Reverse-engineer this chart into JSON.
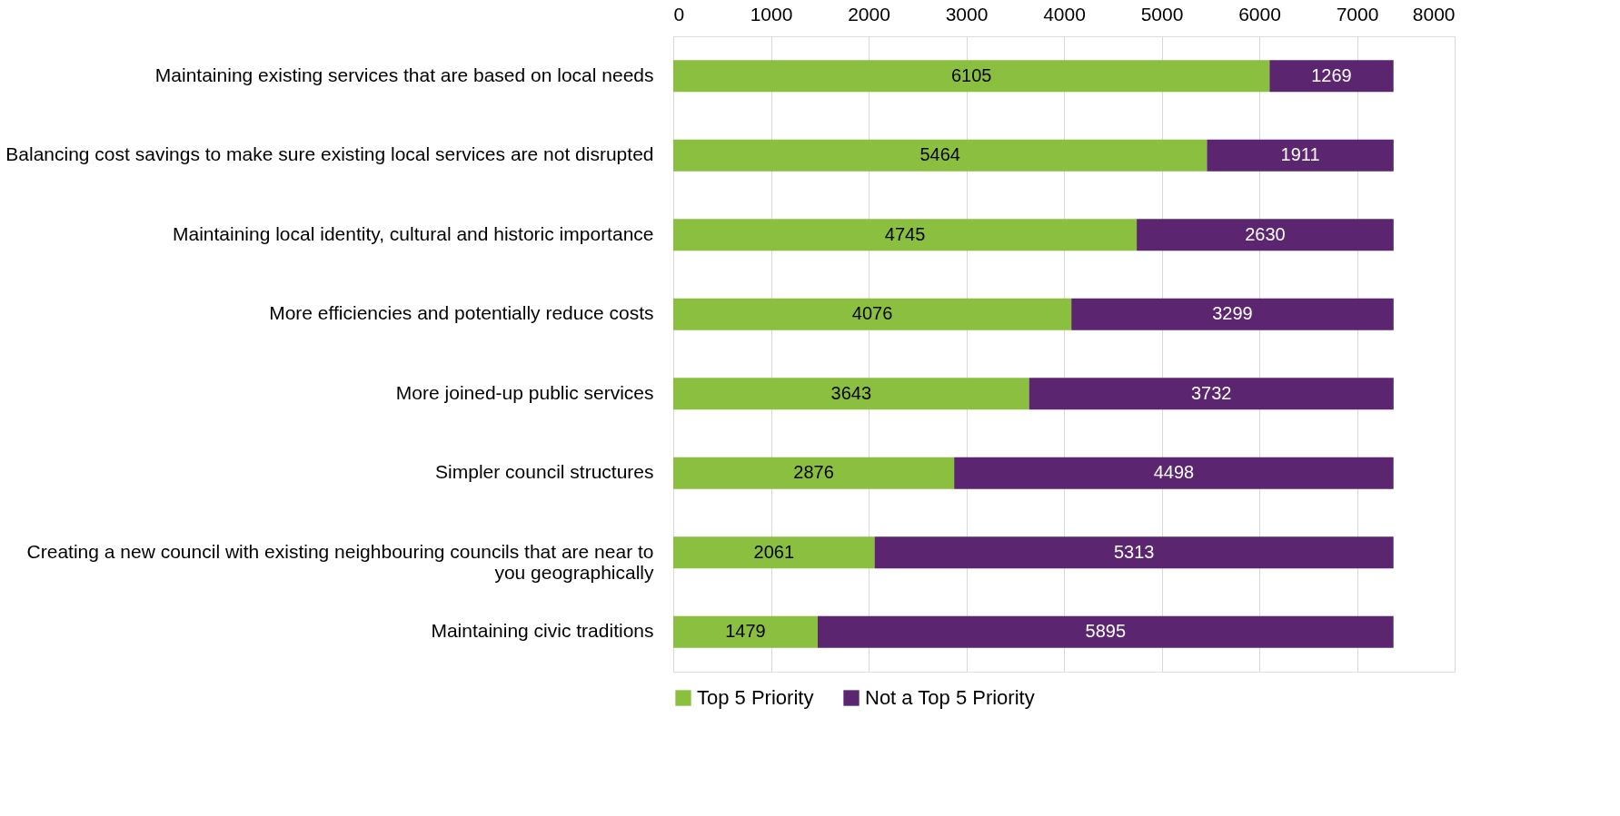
{
  "chart_data": {
    "type": "bar",
    "orientation": "horizontal",
    "stacked": true,
    "categories": [
      "Maintaining existing services that are based on local needs",
      "Balancing cost savings to make sure existing local services are not disrupted",
      "Maintaining local identity, cultural and historic importance",
      "More efficiencies and potentially reduce costs",
      "More joined-up public services",
      "Simpler council structures",
      "Creating a new council with existing neighbouring councils that are near to you geographically",
      "Maintaining civic traditions"
    ],
    "series": [
      {
        "name": "Top 5 Priority",
        "color": "#8bbf3f",
        "values": [
          6105,
          5464,
          4745,
          4076,
          3643,
          2876,
          2061,
          1479
        ]
      },
      {
        "name": "Not a Top 5 Priority",
        "color": "#5b2570",
        "values": [
          1269,
          1911,
          2630,
          3299,
          3732,
          4498,
          5313,
          5895
        ]
      }
    ],
    "xlim": [
      0,
      8000
    ],
    "xticks": [
      0,
      1000,
      2000,
      3000,
      4000,
      5000,
      6000,
      7000,
      8000
    ],
    "grid": "x",
    "legend": "bottom",
    "data_labels": true
  }
}
